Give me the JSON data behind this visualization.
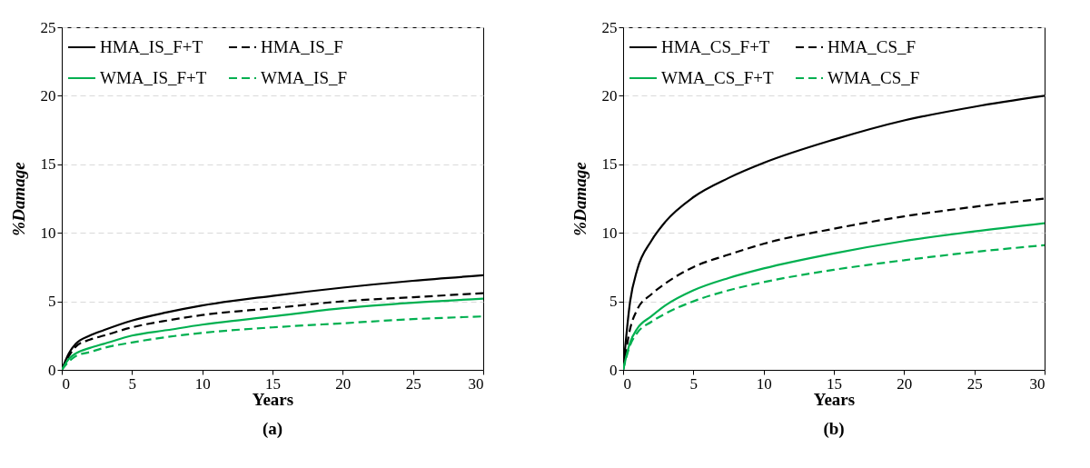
{
  "chart_data": [
    {
      "type": "line",
      "xlabel": "Years",
      "ylabel": "%Damage",
      "annotations": [
        "(a)"
      ],
      "x": [
        0,
        0.5,
        1,
        2,
        3,
        5,
        7.5,
        10,
        15,
        20,
        25,
        30
      ],
      "xlim": [
        0,
        30
      ],
      "xticks": [
        0,
        5,
        10,
        15,
        20,
        25,
        30
      ],
      "ylim": [
        0,
        25
      ],
      "yticks": [
        0,
        5,
        10,
        15,
        20,
        25
      ],
      "grid": "y",
      "legend": "top",
      "marker": "none",
      "series": [
        {
          "name": "HMA_IS_F+T",
          "color": "#000000",
          "line_style": "solid",
          "values": [
            0,
            1.2,
            1.9,
            2.5,
            2.9,
            3.6,
            4.2,
            4.7,
            5.4,
            6.0,
            6.5,
            6.9
          ]
        },
        {
          "name": "HMA_IS_F",
          "color": "#000000",
          "line_style": "dashed",
          "values": [
            0,
            1.0,
            1.7,
            2.2,
            2.5,
            3.1,
            3.6,
            4.0,
            4.5,
            5.0,
            5.3,
            5.6
          ]
        },
        {
          "name": "WMA_IS_F+T",
          "color": "#00b050",
          "line_style": "solid",
          "values": [
            0,
            0.8,
            1.2,
            1.6,
            1.9,
            2.5,
            2.9,
            3.3,
            3.9,
            4.5,
            4.9,
            5.2
          ]
        },
        {
          "name": "WMA_IS_F",
          "color": "#00b050",
          "line_style": "dashed",
          "values": [
            0,
            0.6,
            1.0,
            1.3,
            1.6,
            2.0,
            2.4,
            2.7,
            3.1,
            3.4,
            3.7,
            3.9
          ]
        }
      ]
    },
    {
      "type": "line",
      "xlabel": "Years",
      "ylabel": "%Damage",
      "annotations": [
        "(b)"
      ],
      "x": [
        0,
        0.5,
        1,
        2,
        3,
        5,
        7.5,
        10,
        15,
        20,
        25,
        30
      ],
      "xlim": [
        0,
        30
      ],
      "xticks": [
        0,
        5,
        10,
        15,
        20,
        25,
        30
      ],
      "ylim": [
        0,
        25
      ],
      "yticks": [
        0,
        5,
        10,
        15,
        20,
        25
      ],
      "grid": "y",
      "legend": "top",
      "marker": "none",
      "series": [
        {
          "name": "HMA_CS_F+T",
          "color": "#000000",
          "line_style": "solid",
          "values": [
            0,
            5.0,
            7.3,
            9.4,
            10.8,
            12.6,
            14.0,
            15.1,
            16.8,
            18.2,
            19.2,
            20.0
          ]
        },
        {
          "name": "HMA_CS_F",
          "color": "#000000",
          "line_style": "dashed",
          "values": [
            0,
            3.0,
            4.4,
            5.5,
            6.3,
            7.5,
            8.4,
            9.2,
            10.3,
            11.2,
            11.9,
            12.5
          ]
        },
        {
          "name": "WMA_CS_F+T",
          "color": "#00b050",
          "line_style": "solid",
          "values": [
            0,
            2.0,
            3.0,
            3.9,
            4.7,
            5.8,
            6.7,
            7.4,
            8.5,
            9.4,
            10.1,
            10.7
          ]
        },
        {
          "name": "WMA_CS_F",
          "color": "#00b050",
          "line_style": "dashed",
          "values": [
            0,
            1.8,
            2.7,
            3.5,
            4.1,
            5.0,
            5.8,
            6.4,
            7.3,
            8.0,
            8.6,
            9.1
          ]
        }
      ]
    }
  ]
}
